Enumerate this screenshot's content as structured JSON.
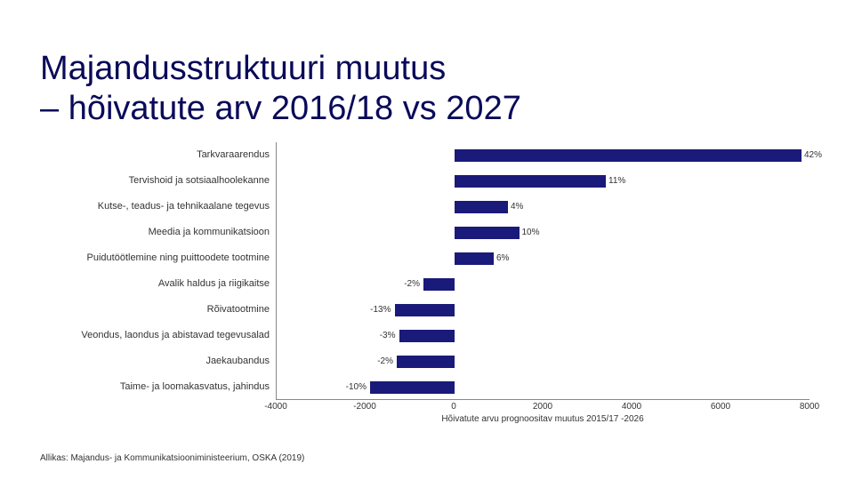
{
  "title_line1": "Majandusstruktuuri muutus",
  "title_line2": "– hõivatute arv 2016/18 vs 2027",
  "source": "Allikas: Majandus- ja Kommunikatsiooniministeerium, OSKA (2019)",
  "chart": {
    "type": "bar-horizontal",
    "bar_color": "#1a1a7a",
    "axis_color": "#888888",
    "text_color": "#333333",
    "label_fontsize": 11,
    "value_fontsize": 10,
    "xlim": [
      -4000,
      8000
    ],
    "xticks": [
      -4000,
      -2000,
      0,
      2000,
      4000,
      6000,
      8000
    ],
    "xlabel": "Hõivatute arvu prognoositav muutus 2015/17 -2026",
    "rows": [
      {
        "label": "Tarkvaraarendus",
        "value": 7800,
        "text": "42%"
      },
      {
        "label": "Tervishoid ja sotsiaalhoolekanne",
        "value": 3400,
        "text": "11%"
      },
      {
        "label": "Kutse-, teadus- ja tehnikaalane tegevus",
        "value": 1200,
        "text": "4%"
      },
      {
        "label": "Meedia ja kommunikatsioon",
        "value": 1450,
        "text": "10%"
      },
      {
        "label": "Puidutöötlemine ning puittoodete tootmine",
        "value": 880,
        "text": "6%"
      },
      {
        "label": "Avalik haldus ja riigikaitse",
        "value": -700,
        "text": "-2%"
      },
      {
        "label": "Rõivatootmine",
        "value": -1350,
        "text": "-13%"
      },
      {
        "label": "Veondus, laondus ja abistavad tegevusalad",
        "value": -1250,
        "text": "-3%"
      },
      {
        "label": "Jaekaubandus",
        "value": -1300,
        "text": "-2%"
      },
      {
        "label": "Taime- ja loomakasvatus, jahindus",
        "value": -1900,
        "text": "-10%"
      }
    ]
  }
}
